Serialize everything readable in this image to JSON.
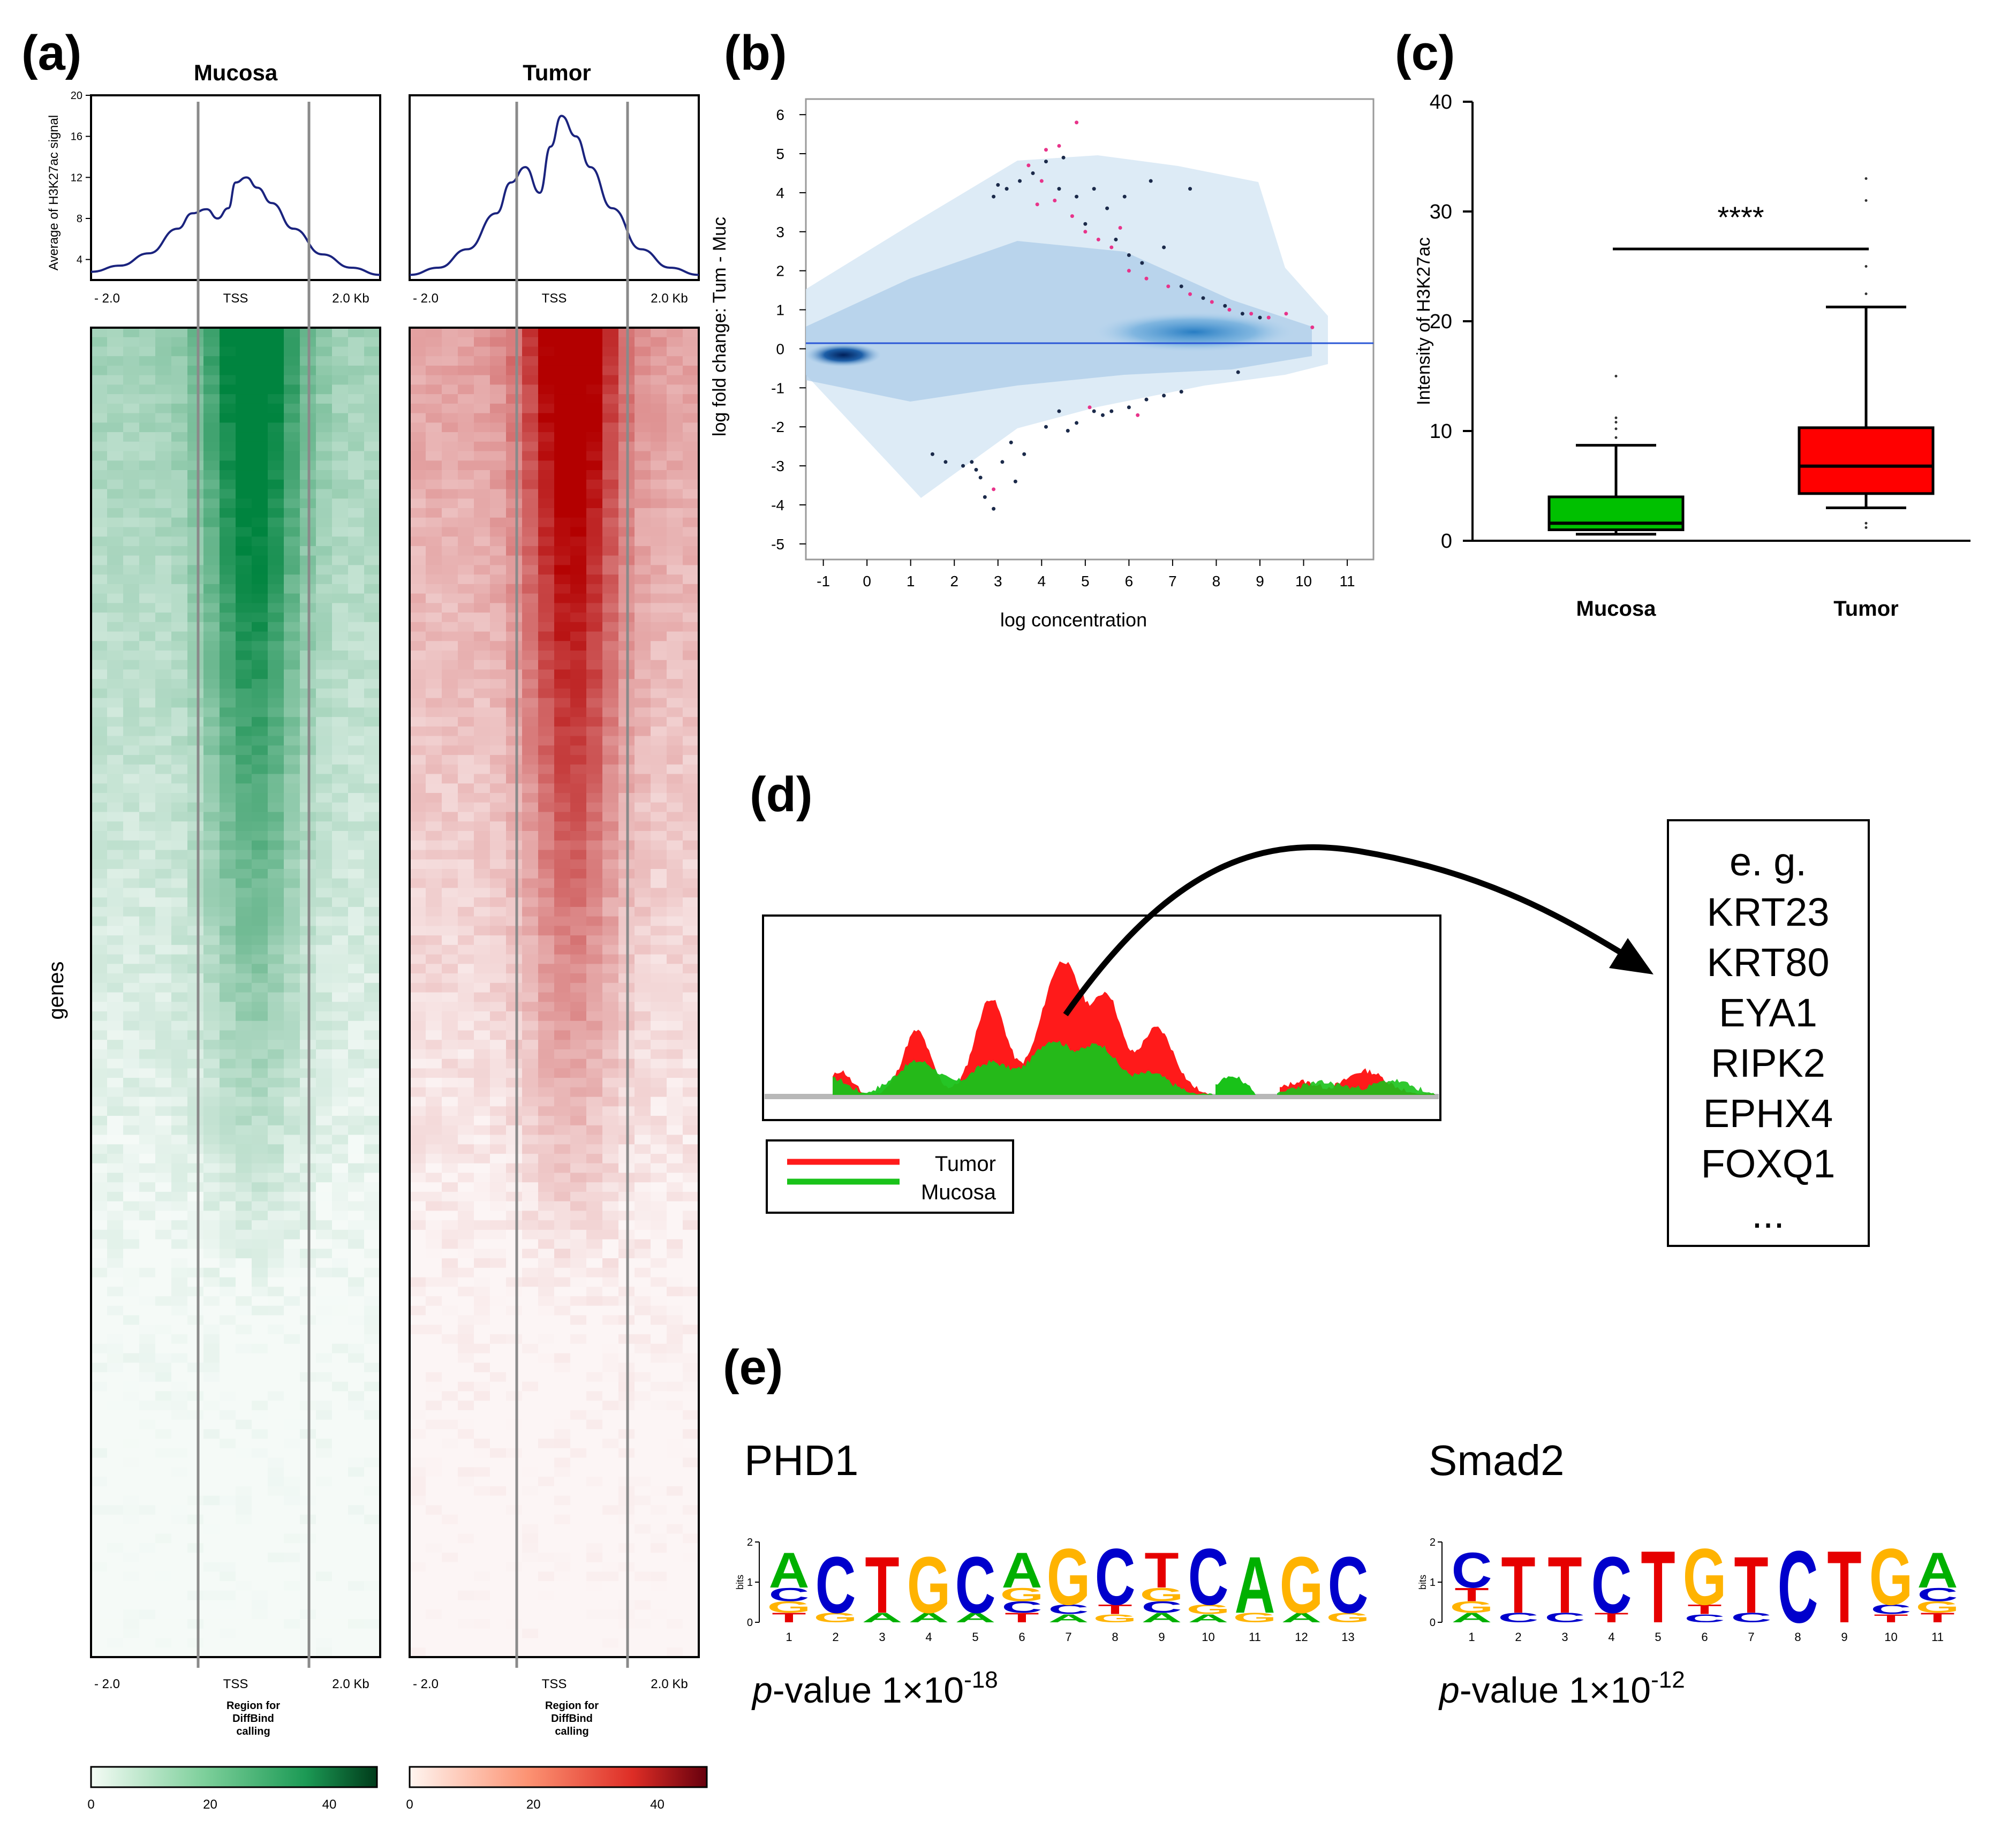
{
  "panel_labels": {
    "a": "(a)",
    "b": "(b)",
    "c": "(c)",
    "d": "(d)",
    "e": "(e)"
  },
  "colors": {
    "mucosa_green": "#00843f",
    "tumor_red": "#b30000",
    "profile_line": "#1a237e",
    "ma_blue": "#2f7fc1",
    "box_green": "#00c000",
    "box_red": "#ff0000",
    "peak_red": "#ff1a1a",
    "peak_green": "#19c219"
  },
  "chart_data": [
    {
      "id": "a-profiles",
      "type": "line",
      "ylabel": "Average of H3K27ac signal",
      "ylim": [
        2,
        20
      ],
      "yticks": [
        4,
        8,
        12,
        16,
        20
      ],
      "xticks": [
        "- 2.0",
        "TSS",
        "2.0 Kb"
      ],
      "series": [
        {
          "name": "Mucosa",
          "x": [
            -2.0,
            -1.6,
            -1.2,
            -0.8,
            -0.6,
            -0.4,
            -0.25,
            -0.1,
            0.0,
            0.15,
            0.3,
            0.5,
            0.8,
            1.2,
            1.6,
            2.0
          ],
          "values": [
            2.8,
            3.4,
            4.6,
            7.0,
            8.5,
            8.9,
            8.0,
            9.0,
            11.5,
            12.0,
            11.0,
            9.5,
            7.0,
            4.5,
            3.2,
            2.5
          ]
        },
        {
          "name": "Tumor",
          "x": [
            -2.0,
            -1.6,
            -1.2,
            -0.8,
            -0.6,
            -0.4,
            -0.2,
            -0.05,
            0.1,
            0.3,
            0.5,
            0.8,
            1.2,
            1.6,
            2.0
          ],
          "values": [
            2.5,
            3.2,
            5.0,
            8.5,
            11.5,
            13.0,
            10.5,
            15.0,
            18.0,
            16.0,
            13.0,
            9.0,
            5.0,
            3.2,
            2.5
          ]
        }
      ]
    },
    {
      "id": "a-heatmaps",
      "type": "heatmap",
      "title_left": "Mucosa",
      "title_right": "Tumor",
      "ylabel": "genes",
      "xticks": [
        "- 2.0",
        "TSS",
        "2.0 Kb"
      ],
      "region_note": "Region for DiffBind calling",
      "colorbar_ticks": [
        0,
        20,
        40
      ],
      "colorbar_range": [
        0,
        48
      ]
    },
    {
      "id": "b-ma",
      "type": "scatter",
      "xlabel": "log concentration",
      "ylabel": "log fold change: Tum - Muc",
      "xlim": [
        -1.4,
        11.6
      ],
      "ylim": [
        -5.4,
        6.4
      ],
      "xticks": [
        -1,
        0,
        1,
        2,
        3,
        4,
        5,
        6,
        7,
        8,
        9,
        10,
        11
      ],
      "yticks": [
        -5,
        -4,
        -3,
        -2,
        -1,
        0,
        1,
        2,
        3,
        4,
        5,
        6
      ],
      "points_dark": [
        [
          2.9,
          3.9
        ],
        [
          3.2,
          4.1
        ],
        [
          3.5,
          4.3
        ],
        [
          3.8,
          4.5
        ],
        [
          4.1,
          4.8
        ],
        [
          4.5,
          4.9
        ],
        [
          4.8,
          3.9
        ],
        [
          5.2,
          4.1
        ],
        [
          5.5,
          3.6
        ],
        [
          5.9,
          3.9
        ],
        [
          4.4,
          4.1
        ],
        [
          5.0,
          3.2
        ],
        [
          5.7,
          2.8
        ],
        [
          6.0,
          2.4
        ],
        [
          6.3,
          2.2
        ],
        [
          6.8,
          2.6
        ],
        [
          7.2,
          1.6
        ],
        [
          7.7,
          1.3
        ],
        [
          8.2,
          1.1
        ],
        [
          8.6,
          0.9
        ],
        [
          9.0,
          0.8
        ],
        [
          7.4,
          4.1
        ],
        [
          6.5,
          4.3
        ],
        [
          3.0,
          4.2
        ],
        [
          1.5,
          -2.7
        ],
        [
          1.8,
          -2.9
        ],
        [
          2.2,
          -3.0
        ],
        [
          2.5,
          -3.1
        ],
        [
          2.6,
          -3.3
        ],
        [
          2.7,
          -3.8
        ],
        [
          2.9,
          -4.1
        ],
        [
          3.1,
          -2.9
        ],
        [
          3.3,
          -2.4
        ],
        [
          3.6,
          -2.7
        ],
        [
          4.1,
          -2.0
        ],
        [
          4.4,
          -1.6
        ],
        [
          4.8,
          -1.9
        ],
        [
          5.2,
          -1.6
        ],
        [
          5.6,
          -1.6
        ],
        [
          6.0,
          -1.5
        ],
        [
          6.4,
          -1.3
        ],
        [
          6.8,
          -1.2
        ],
        [
          7.2,
          -1.1
        ],
        [
          8.5,
          -0.6
        ],
        [
          3.4,
          -3.4
        ],
        [
          2.4,
          -2.9
        ],
        [
          4.6,
          -2.1
        ],
        [
          5.4,
          -1.7
        ]
      ],
      "points_pink": [
        [
          3.7,
          4.7
        ],
        [
          4.1,
          5.1
        ],
        [
          4.4,
          5.2
        ],
        [
          4.8,
          5.8
        ],
        [
          3.9,
          3.7
        ],
        [
          4.3,
          3.8
        ],
        [
          4.7,
          3.4
        ],
        [
          5.0,
          3.0
        ],
        [
          5.3,
          2.8
        ],
        [
          5.6,
          2.6
        ],
        [
          6.0,
          2.0
        ],
        [
          6.4,
          1.8
        ],
        [
          6.9,
          1.6
        ],
        [
          7.4,
          1.4
        ],
        [
          7.9,
          1.2
        ],
        [
          8.3,
          1.0
        ],
        [
          8.8,
          0.9
        ],
        [
          9.2,
          0.8
        ],
        [
          10.2,
          0.55
        ],
        [
          9.6,
          0.9
        ],
        [
          2.9,
          -3.6
        ],
        [
          5.1,
          -1.5
        ],
        [
          6.2,
          -1.7
        ],
        [
          4.0,
          4.3
        ],
        [
          5.8,
          3.1
        ]
      ]
    },
    {
      "id": "c-box",
      "type": "box",
      "ylabel": "Intensity of H3K27ac",
      "ylim": [
        0,
        40
      ],
      "yticks": [
        0,
        10,
        20,
        30,
        40
      ],
      "categories": [
        "Mucosa",
        "Tumor"
      ],
      "boxes": [
        {
          "name": "Mucosa",
          "whisker_low": 0.6,
          "q1": 1.0,
          "median": 1.6,
          "q3": 4.0,
          "whisker_high": 8.7,
          "outliers": [
            15.0,
            11.2,
            10.8,
            10.2,
            9.4
          ]
        },
        {
          "name": "Tumor",
          "whisker_low": 3.0,
          "q1": 4.3,
          "median": 6.8,
          "q3": 10.3,
          "whisker_high": 21.3,
          "outliers": [
            33.0,
            31.0,
            25.0,
            22.5,
            1.6,
            1.2
          ]
        }
      ],
      "significance": "****"
    },
    {
      "id": "d-peaks",
      "type": "area",
      "legend": [
        "Tumor",
        "Mucosa"
      ],
      "gene_box": [
        "e. g.",
        "KRT23",
        "KRT80",
        "EYA1",
        "RIPK2",
        "EPHX4",
        "FOXQ1",
        "..."
      ]
    },
    {
      "id": "e-motifs",
      "type": "sequence-logo",
      "ylabel": "bits",
      "ylim": [
        0,
        2
      ],
      "motifs": [
        {
          "name": "PHD1",
          "pvalue_prefix": "-value 1×10",
          "pvalue_exp": "-18",
          "positions": [
            [
              "A",
              "C",
              "G",
              "T"
            ],
            [
              "C",
              "G"
            ],
            [
              "T",
              "A"
            ],
            [
              "G",
              "A"
            ],
            [
              "C",
              "A"
            ],
            [
              "A",
              "G",
              "C",
              "T"
            ],
            [
              "G",
              "C",
              "A"
            ],
            [
              "C",
              "T",
              "G"
            ],
            [
              "T",
              "G",
              "C",
              "A"
            ],
            [
              "C",
              "G",
              "A"
            ],
            [
              "A",
              "G"
            ],
            [
              "G",
              "A"
            ],
            [
              "C",
              "G"
            ]
          ]
        },
        {
          "name": "Smad2",
          "pvalue_prefix": "-value 1×10",
          "pvalue_exp": "-12",
          "positions": [
            [
              "C",
              "T",
              "G",
              "A"
            ],
            [
              "T",
              "C"
            ],
            [
              "T",
              "C"
            ],
            [
              "C",
              "T"
            ],
            [
              "T"
            ],
            [
              "G",
              "T",
              "C"
            ],
            [
              "T",
              "C"
            ],
            [
              "C"
            ],
            [
              "T"
            ],
            [
              "G",
              "C",
              "T"
            ],
            [
              "A",
              "C",
              "G",
              "T"
            ]
          ]
        }
      ]
    }
  ]
}
